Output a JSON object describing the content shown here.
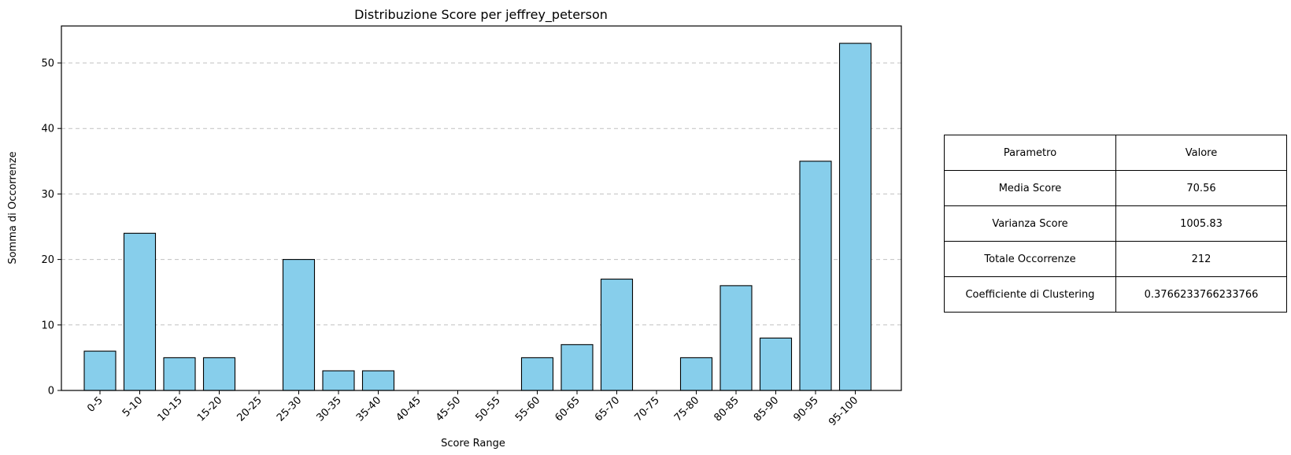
{
  "chart_data": {
    "type": "bar",
    "title": "Distribuzione Score per jeffrey_peterson",
    "xlabel": "Score Range",
    "ylabel": "Somma di Occorrenze",
    "categories": [
      "0-5",
      "5-10",
      "10-15",
      "15-20",
      "20-25",
      "25-30",
      "30-35",
      "35-40",
      "40-45",
      "45-50",
      "50-55",
      "55-60",
      "60-65",
      "65-70",
      "70-75",
      "75-80",
      "80-85",
      "85-90",
      "90-95",
      "95-100"
    ],
    "values": [
      6,
      24,
      5,
      5,
      0,
      20,
      3,
      3,
      0,
      0,
      0,
      5,
      7,
      17,
      0,
      5,
      16,
      8,
      35,
      53
    ],
    "ylim": [
      0,
      55.65
    ],
    "yticks": [
      0,
      10,
      20,
      30,
      40,
      50
    ],
    "grid": "y-dashed",
    "bar_color": "#87ceeb",
    "edge_color": "#000000"
  },
  "table": {
    "header": [
      "Parametro",
      "Valore"
    ],
    "rows": [
      [
        "Media Score",
        "70.56"
      ],
      [
        "Varianza Score",
        "1005.83"
      ],
      [
        "Totale Occorrenze",
        "212"
      ],
      [
        "Coefficiente di Clustering",
        "0.3766233766233766"
      ]
    ]
  }
}
